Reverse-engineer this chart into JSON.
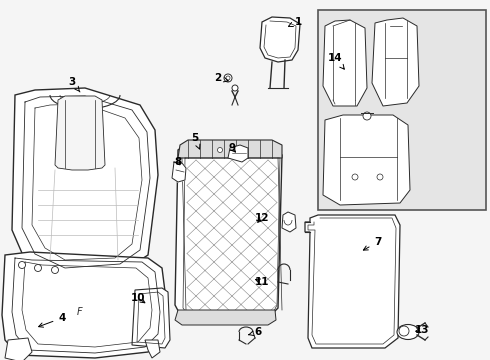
{
  "bg_color": "#f5f5f5",
  "line_color": "#2a2a2a",
  "gray": "#888888",
  "light_gray": "#bbbbbb",
  "box_color": "#e5e5e5",
  "figsize": [
    4.9,
    3.6
  ],
  "dpi": 100,
  "labels": [
    [
      "1",
      298,
      22,
      285,
      28
    ],
    [
      "2",
      218,
      78,
      232,
      82
    ],
    [
      "3",
      72,
      82,
      80,
      92
    ],
    [
      "4",
      62,
      318,
      35,
      328
    ],
    [
      "5",
      195,
      138,
      200,
      150
    ],
    [
      "6",
      258,
      332,
      248,
      335
    ],
    [
      "7",
      378,
      242,
      360,
      252
    ],
    [
      "8",
      178,
      162,
      182,
      168
    ],
    [
      "9",
      232,
      148,
      238,
      155
    ],
    [
      "10",
      138,
      298,
      148,
      305
    ],
    [
      "11",
      262,
      282,
      252,
      278
    ],
    [
      "12",
      262,
      218,
      255,
      225
    ],
    [
      "13",
      422,
      330,
      412,
      332
    ],
    [
      "14",
      335,
      58,
      345,
      70
    ]
  ]
}
